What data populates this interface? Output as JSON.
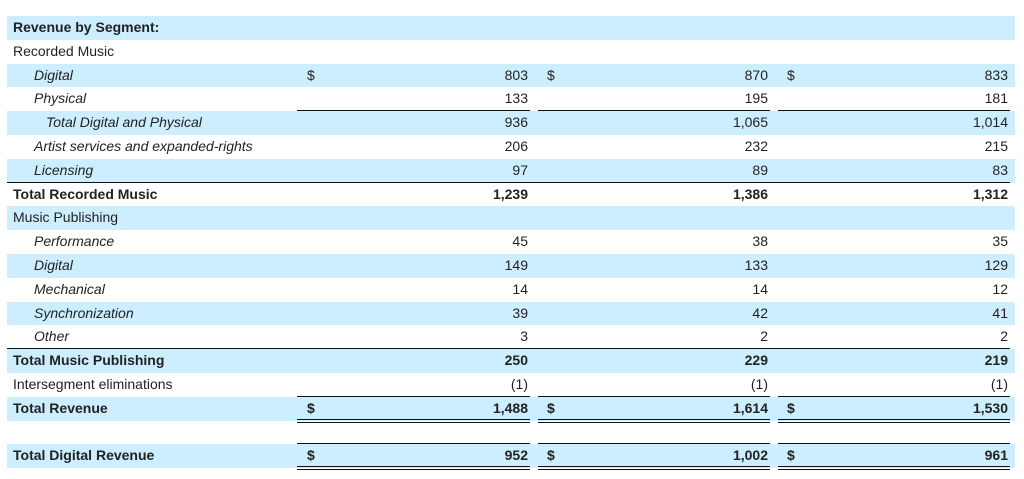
{
  "table": {
    "rows": [
      {
        "label": "Revenue by Segment:"
      },
      {
        "label": "Recorded Music"
      },
      {
        "label": "Digital",
        "currency": "$",
        "values": [
          "803",
          "870",
          "833"
        ]
      },
      {
        "label": "Physical",
        "values": [
          "133",
          "195",
          "181"
        ]
      },
      {
        "label": "Total Digital and Physical",
        "values": [
          "936",
          "1,065",
          "1,014"
        ]
      },
      {
        "label": "Artist services and expanded-rights",
        "values": [
          "206",
          "232",
          "215"
        ]
      },
      {
        "label": "Licensing",
        "values": [
          "97",
          "89",
          "83"
        ]
      },
      {
        "label": "Total Recorded Music",
        "values": [
          "1,239",
          "1,386",
          "1,312"
        ]
      },
      {
        "label": "Music Publishing"
      },
      {
        "label": "Performance",
        "values": [
          "45",
          "38",
          "35"
        ]
      },
      {
        "label": "Digital",
        "values": [
          "149",
          "133",
          "129"
        ]
      },
      {
        "label": "Mechanical",
        "values": [
          "14",
          "14",
          "12"
        ]
      },
      {
        "label": "Synchronization",
        "values": [
          "39",
          "42",
          "41"
        ]
      },
      {
        "label": "Other",
        "values": [
          "3",
          "2",
          "2"
        ]
      },
      {
        "label": "Total Music Publishing",
        "values": [
          "250",
          "229",
          "219"
        ]
      },
      {
        "label": "Intersegment eliminations",
        "values": [
          "(1)",
          "(1)",
          "(1)"
        ]
      },
      {
        "label": "Total Revenue",
        "currency": "$",
        "values": [
          "1,488",
          "1,614",
          "1,530"
        ]
      },
      {
        "label": "Total Digital Revenue",
        "currency": "$",
        "values": [
          "952",
          "1,002",
          "961"
        ]
      }
    ]
  }
}
